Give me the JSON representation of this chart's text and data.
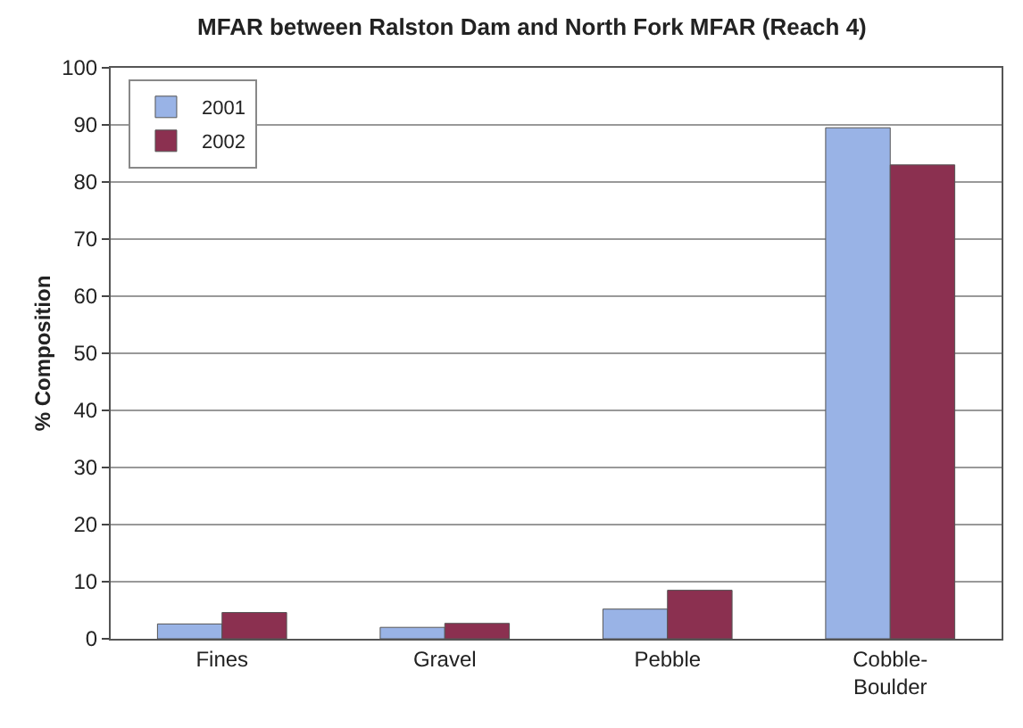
{
  "chart_data": {
    "type": "bar",
    "title": "MFAR between Ralston Dam and North Fork MFAR (Reach 4)",
    "ylabel": "% Composition",
    "categories": [
      "Fines",
      "Gravel",
      "Pebble",
      "Cobble-\nBoulder"
    ],
    "series": [
      {
        "name": "2001",
        "color": "#99b3e6",
        "values": [
          2.6,
          2.0,
          5.2,
          89.5
        ]
      },
      {
        "name": "2002",
        "color": "#8b3050",
        "values": [
          4.6,
          2.7,
          8.5,
          83
        ]
      }
    ],
    "ylim": [
      0,
      100
    ],
    "yticks": [
      0,
      10,
      20,
      30,
      40,
      50,
      60,
      70,
      80,
      90,
      100
    ],
    "grid": "y",
    "legend": "top left"
  }
}
